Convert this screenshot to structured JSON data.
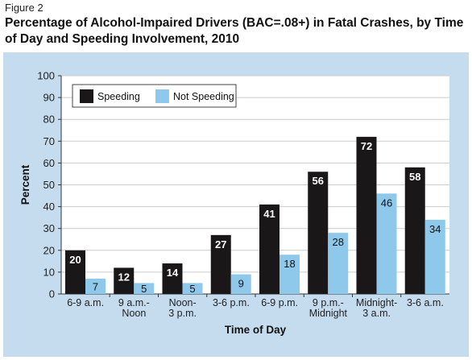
{
  "figure_label": "Figure 2",
  "title": "Percentage of Alcohol-Impaired Drivers (BAC=.08+) in Fatal Crashes, by Time of Day and Speeding Involvement, 2010",
  "colors": {
    "speeding": "#1a1718",
    "not_speeding": "#8ec8ea",
    "panel": "#c5dcef",
    "plot": "#ffffff"
  },
  "chart_data": {
    "type": "bar",
    "xlabel": "Time of Day",
    "ylabel": "Percent",
    "ylim": [
      0,
      100
    ],
    "yticks": [
      0,
      10,
      20,
      30,
      40,
      50,
      60,
      70,
      80,
      90,
      100
    ],
    "legend_position": "top-left",
    "grid": true,
    "categories": [
      [
        "6-9 a.m."
      ],
      [
        "9 a.m.-",
        "Noon"
      ],
      [
        "Noon-",
        "3 p.m."
      ],
      [
        "3-6 p.m."
      ],
      [
        "6-9 p.m."
      ],
      [
        "9 p.m.-",
        "Midnight"
      ],
      [
        "Midnight-",
        "3 a.m."
      ],
      [
        "3-6 a.m."
      ]
    ],
    "series": [
      {
        "name": "Speeding",
        "values": [
          20,
          12,
          14,
          27,
          41,
          56,
          72,
          58
        ]
      },
      {
        "name": "Not Speeding",
        "values": [
          7,
          5,
          5,
          9,
          18,
          28,
          46,
          34
        ]
      }
    ]
  }
}
